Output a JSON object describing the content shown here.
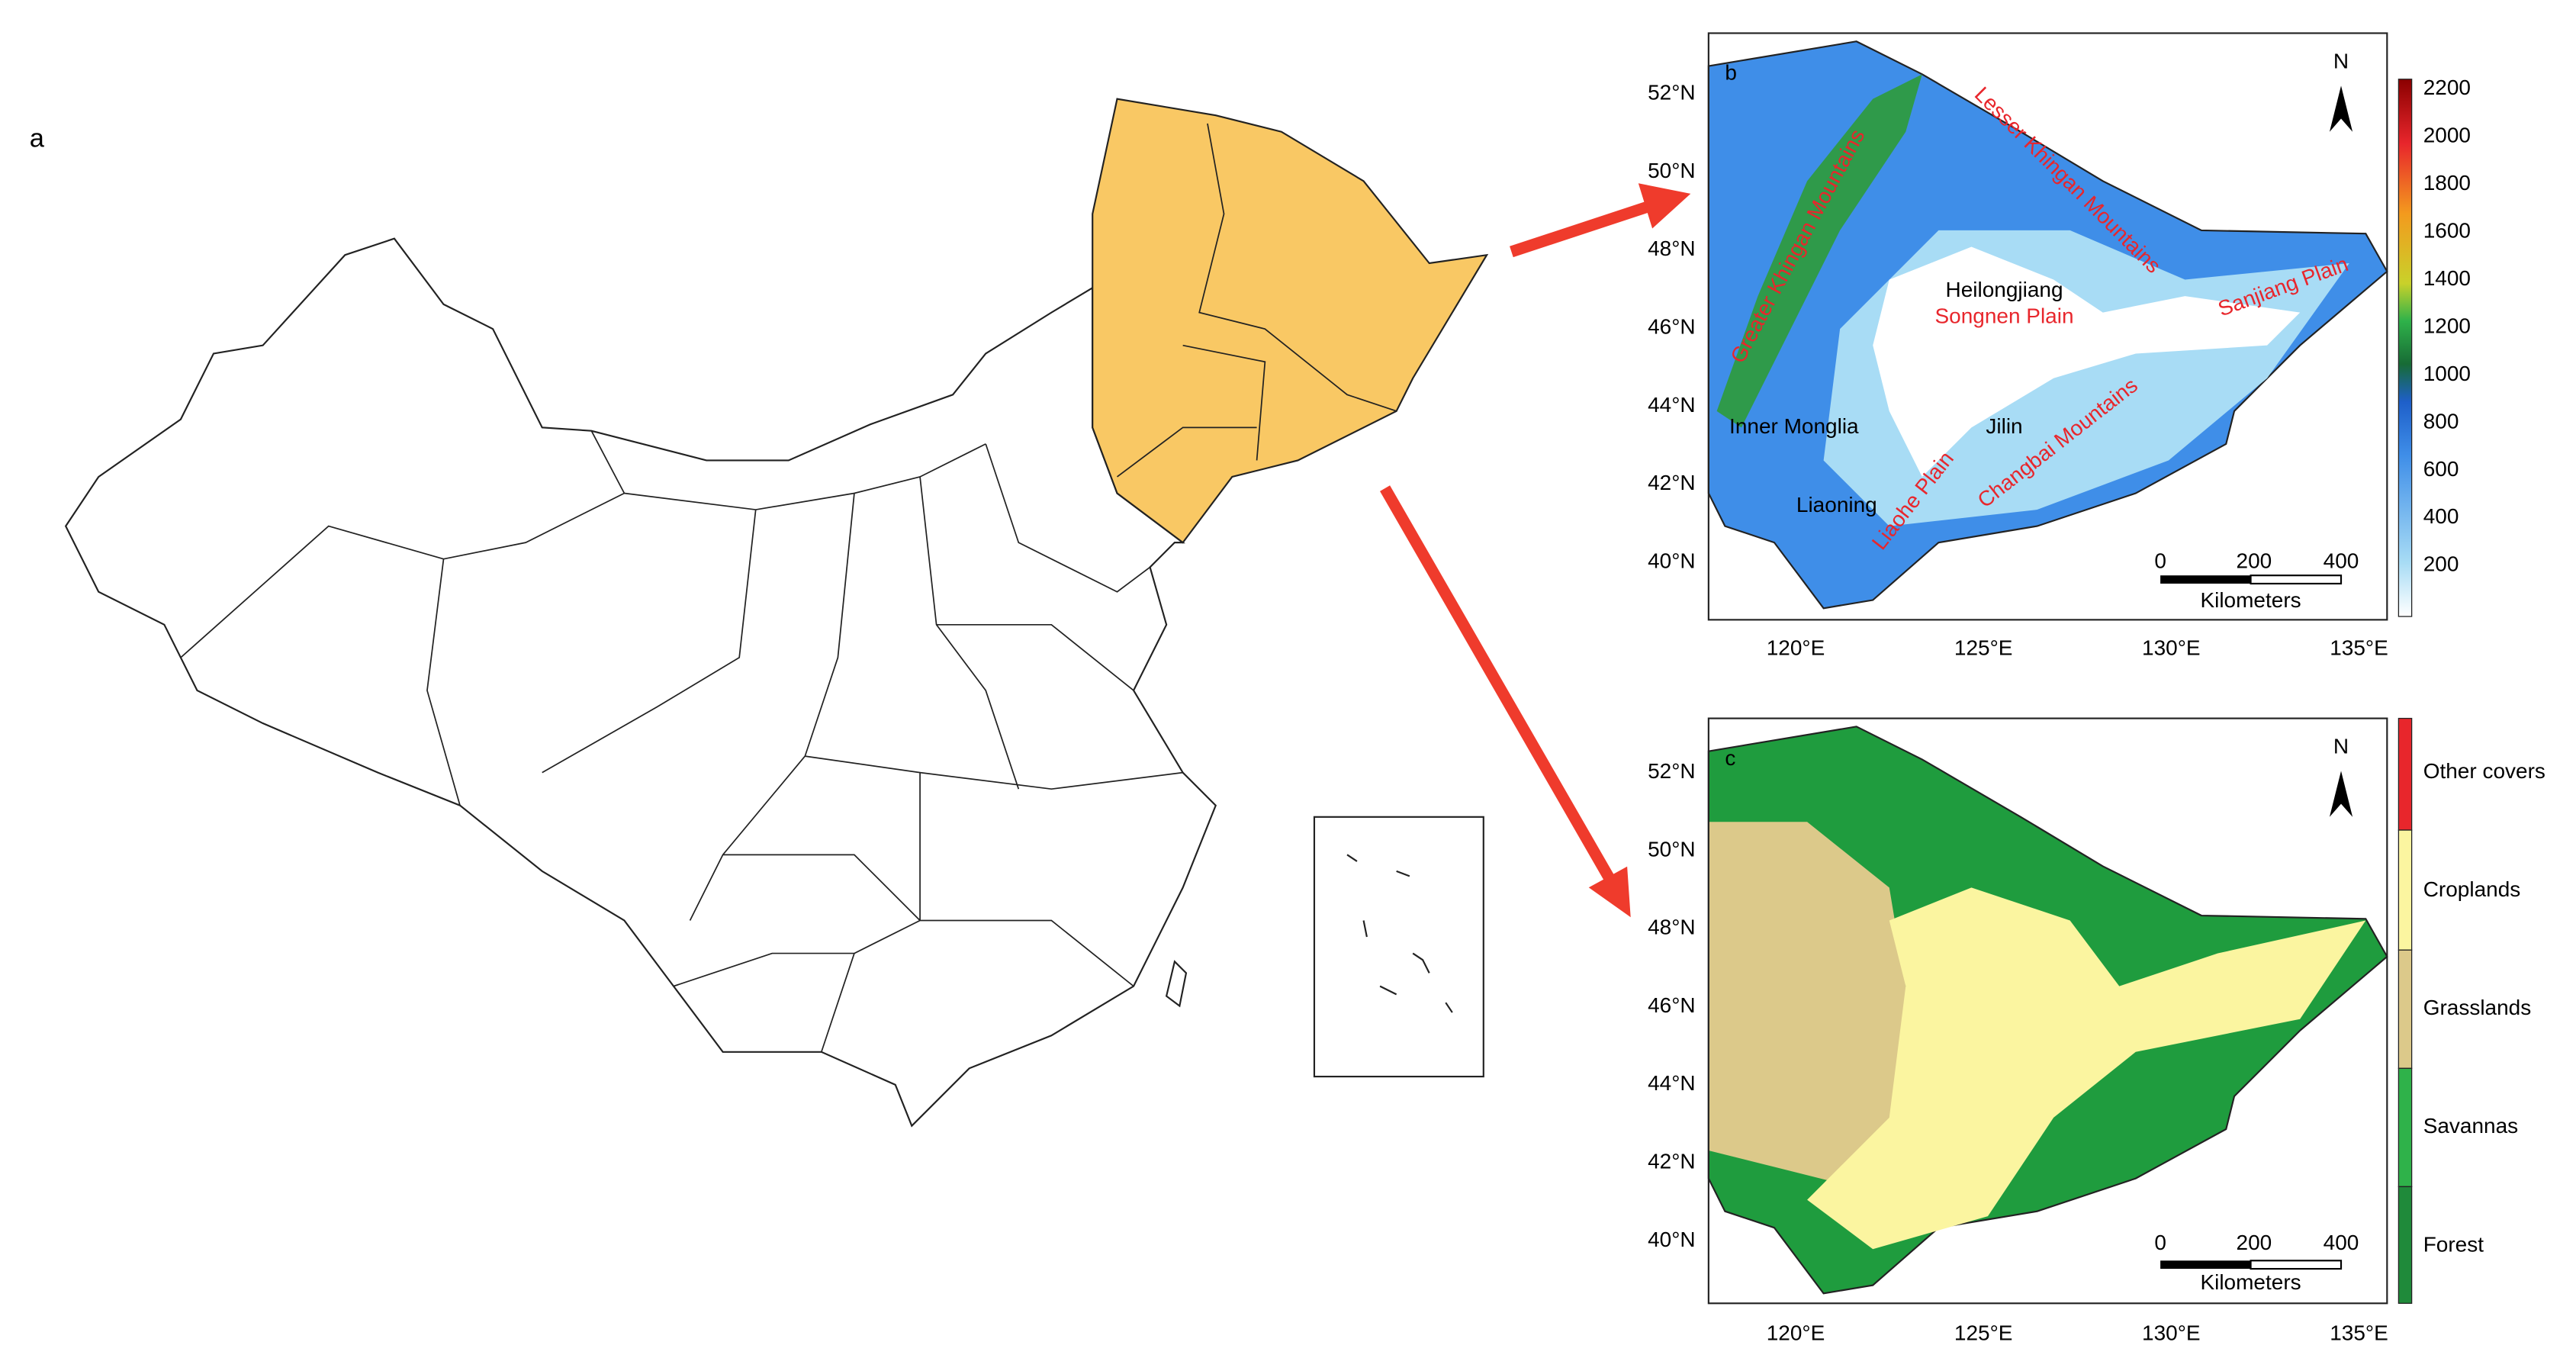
{
  "panel_a": {
    "label": "a"
  },
  "panel_b": {
    "label": "b",
    "lat_labels": [
      "52°N",
      "50°N",
      "48°N",
      "46°N",
      "44°N",
      "42°N",
      "40°N"
    ],
    "lon_labels": [
      "120°E",
      "125°E",
      "130°E",
      "135°E"
    ],
    "colorbar_labels": [
      "2200",
      "2000",
      "1800",
      "1600",
      "1400",
      "1200",
      "1000",
      "800",
      "600",
      "400",
      "200"
    ],
    "north": "N",
    "scale_labels": [
      "0",
      "200",
      "400"
    ],
    "scale_unit": "Kilometers",
    "place_labels": {
      "heilongjiang": "Heilongjiang",
      "jilin": "Jilin",
      "liaoning": "Liaoning",
      "inner_mongolia": "Inner Monglia",
      "greater_khingan": "Greater Khingan Mountains",
      "lesser_khingan": "Lesser Khingan Mountains",
      "songnen": "Songnen Plain",
      "sanjiang": "Sanjiang Plain",
      "changbai": "Changbai Mountains",
      "liaohe": "Liaohe Plain"
    }
  },
  "panel_c": {
    "label": "c",
    "lat_labels": [
      "52°N",
      "50°N",
      "48°N",
      "46°N",
      "44°N",
      "42°N",
      "40°N"
    ],
    "lon_labels": [
      "120°E",
      "125°E",
      "130°E",
      "135°E"
    ],
    "legend": [
      "Other covers",
      "Croplands",
      "Grasslands",
      "Savannas",
      "Forest"
    ],
    "north": "N",
    "scale_labels": [
      "0",
      "200",
      "400"
    ],
    "scale_unit": "Kilometers"
  }
}
